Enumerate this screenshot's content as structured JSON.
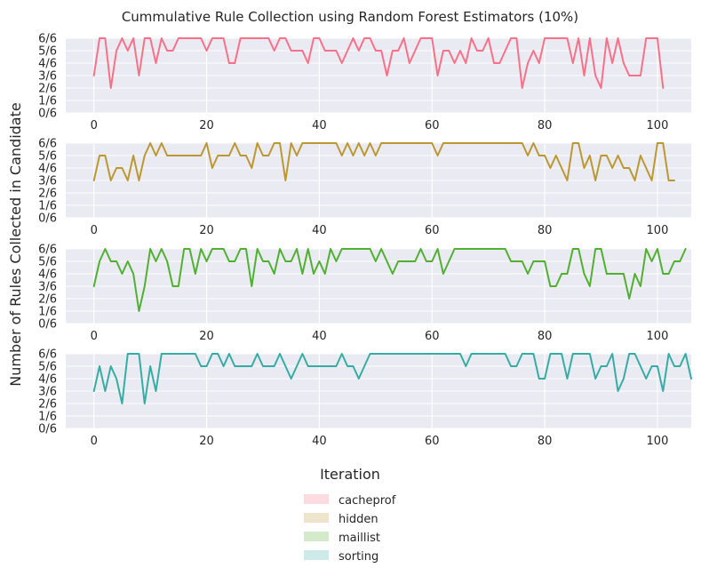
{
  "chart_data": {
    "type": "line",
    "title": "Cummulative Rule Collection using Random Forest Estimators (10%)",
    "xlabel": "Iteration",
    "ylabel": "Number of Rules Collected in Candidate",
    "x_ticks": [
      0,
      20,
      40,
      60,
      80,
      100
    ],
    "y_ticks": [
      "0/6",
      "1/6",
      "2/6",
      "3/6",
      "4/6",
      "5/6",
      "6/6"
    ],
    "xlim": [
      -5,
      106
    ],
    "ylim": [
      0,
      6
    ],
    "grid": true,
    "legend_position": "bottom-center",
    "series": [
      {
        "name": "cacheprof",
        "color": "#f77189",
        "values": [
          3,
          6,
          6,
          2,
          5,
          6,
          5,
          6,
          3,
          6,
          6,
          4,
          6,
          5,
          5,
          6,
          6,
          6,
          6,
          6,
          5,
          6,
          6,
          6,
          4,
          4,
          6,
          6,
          6,
          6,
          6,
          6,
          5,
          6,
          6,
          5,
          5,
          5,
          4,
          6,
          6,
          5,
          5,
          5,
          4,
          5,
          6,
          5,
          6,
          6,
          5,
          5,
          3,
          5,
          5,
          6,
          4,
          5,
          6,
          6,
          6,
          3,
          5,
          5,
          4,
          5,
          4,
          6,
          5,
          5,
          6,
          4,
          4,
          5,
          6,
          6,
          2,
          4,
          5,
          4,
          6,
          6,
          6,
          6,
          6,
          4,
          6,
          3,
          6,
          3,
          2,
          6,
          4,
          6,
          4,
          3,
          3,
          3,
          6,
          6,
          6,
          2
        ]
      },
      {
        "name": "hidden",
        "color": "#bb9832",
        "values": [
          3,
          5,
          5,
          3,
          4,
          4,
          3,
          5,
          3,
          5,
          6,
          5,
          6,
          5,
          5,
          5,
          5,
          5,
          5,
          5,
          6,
          4,
          5,
          5,
          5,
          6,
          5,
          5,
          4,
          6,
          5,
          5,
          6,
          6,
          3,
          6,
          5,
          6,
          6,
          6,
          6,
          6,
          6,
          6,
          5,
          6,
          5,
          6,
          5,
          6,
          5,
          6,
          6,
          6,
          6,
          6,
          6,
          6,
          6,
          6,
          6,
          5,
          6,
          6,
          6,
          6,
          6,
          6,
          6,
          6,
          6,
          6,
          6,
          6,
          6,
          6,
          6,
          5,
          6,
          5,
          5,
          4,
          5,
          4,
          3,
          6,
          6,
          4,
          5,
          3,
          5,
          5,
          4,
          5,
          4,
          4,
          3,
          5,
          4,
          3,
          6,
          6,
          3,
          3
        ]
      },
      {
        "name": "maillist",
        "color": "#50b131",
        "values": [
          3,
          5,
          6,
          5,
          5,
          4,
          5,
          4,
          1,
          3,
          6,
          5,
          6,
          5,
          3,
          3,
          6,
          6,
          4,
          6,
          5,
          6,
          6,
          6,
          5,
          5,
          6,
          6,
          3,
          6,
          5,
          5,
          4,
          6,
          5,
          5,
          6,
          4,
          6,
          4,
          5,
          4,
          6,
          5,
          6,
          6,
          6,
          6,
          6,
          6,
          5,
          6,
          5,
          4,
          5,
          5,
          5,
          5,
          6,
          5,
          5,
          6,
          4,
          5,
          6,
          6,
          6,
          6,
          6,
          6,
          6,
          6,
          6,
          6,
          5,
          5,
          5,
          4,
          5,
          5,
          5,
          3,
          3,
          4,
          4,
          6,
          6,
          4,
          3,
          6,
          6,
          4,
          4,
          4,
          4,
          2,
          4,
          3,
          6,
          5,
          6,
          4,
          4,
          5,
          5,
          6
        ]
      },
      {
        "name": "sorting",
        "color": "#36ada4",
        "values": [
          3,
          5,
          3,
          5,
          4,
          2,
          6,
          6,
          6,
          2,
          5,
          3,
          6,
          6,
          6,
          6,
          6,
          6,
          6,
          5,
          5,
          6,
          6,
          5,
          6,
          5,
          5,
          5,
          5,
          6,
          5,
          5,
          5,
          6,
          5,
          4,
          5,
          6,
          5,
          5,
          5,
          5,
          5,
          5,
          6,
          5,
          5,
          4,
          5,
          6,
          6,
          6,
          6,
          6,
          6,
          6,
          6,
          6,
          6,
          6,
          6,
          6,
          6,
          6,
          6,
          6,
          5,
          6,
          6,
          6,
          6,
          6,
          6,
          6,
          5,
          5,
          6,
          6,
          6,
          4,
          4,
          6,
          6,
          6,
          4,
          6,
          6,
          6,
          6,
          4,
          5,
          5,
          6,
          3,
          4,
          6,
          6,
          5,
          4,
          5,
          5,
          3,
          6,
          5,
          5,
          6,
          4
        ]
      }
    ]
  }
}
